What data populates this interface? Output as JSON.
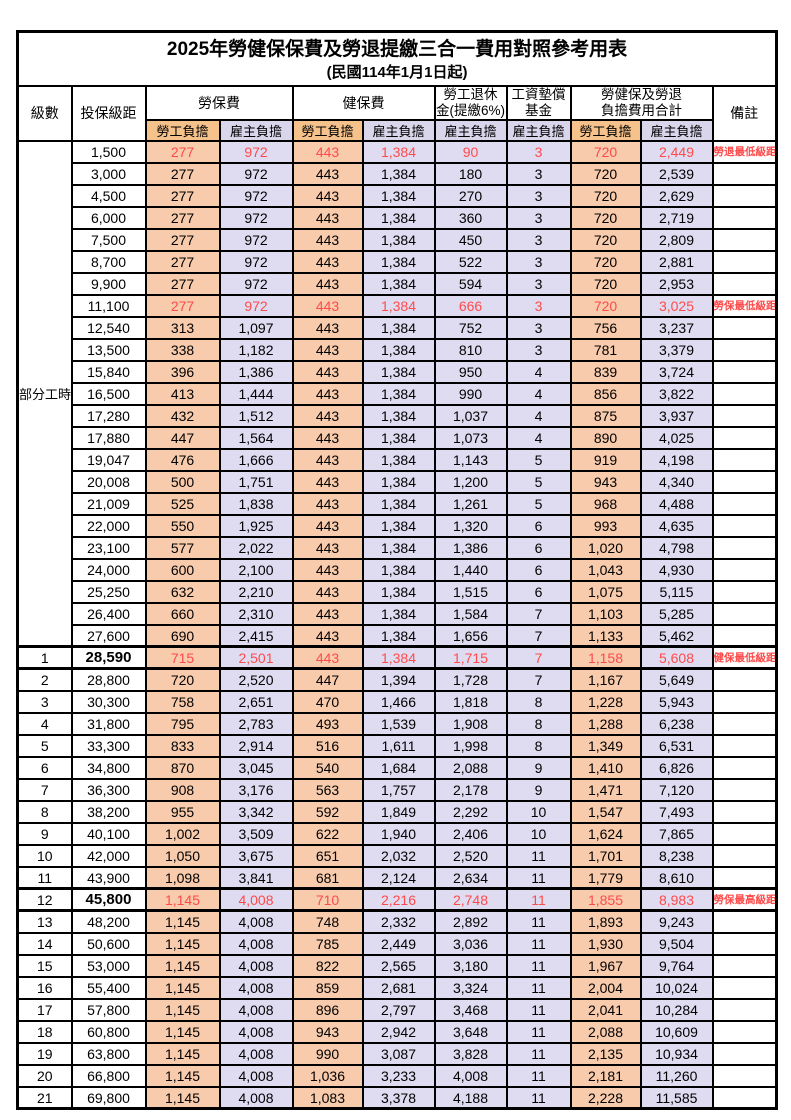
{
  "theme": {
    "orange_header": "#F6C28B",
    "orange_cell": "#F8CBAD",
    "lavender_header": "#D9D6EC",
    "lavender_cell": "#DFDCF2",
    "red_text": "#FF4A4A",
    "border": "#000000"
  },
  "title": {
    "line1": "2025年勞健保保費及勞退提繳三合一費用對照參考用表",
    "line2": "(民國114年1月1日起)"
  },
  "header": {
    "level": "級數",
    "bracket": "投保級距",
    "labor_group": "勞保費",
    "health_group": "健保費",
    "pension_line1": "勞工退休",
    "pension_line2": "金(提繳6%)",
    "wage_fund_line1": "工資墊償",
    "wage_fund_line2": "基金",
    "total_line1": "勞健保及勞退",
    "total_line2": "負擔費用合計",
    "remark": "備註",
    "employee": "勞工負擔",
    "employer": "雇主負擔"
  },
  "table": {
    "group_label": "部分工時",
    "group_rowspan": 23,
    "rows": [
      {
        "level": "",
        "bracket": "1,500",
        "values": [
          "277",
          "972",
          "443",
          "1,384",
          "90",
          "3",
          "720",
          "2,449"
        ],
        "remark": "勞退最低級距",
        "highlight": true,
        "bold_bracket": false,
        "section": false
      },
      {
        "level": "",
        "bracket": "3,000",
        "values": [
          "277",
          "972",
          "443",
          "1,384",
          "180",
          "3",
          "720",
          "2,539"
        ],
        "remark": "",
        "highlight": false,
        "bold_bracket": false,
        "section": false
      },
      {
        "level": "",
        "bracket": "4,500",
        "values": [
          "277",
          "972",
          "443",
          "1,384",
          "270",
          "3",
          "720",
          "2,629"
        ],
        "remark": "",
        "highlight": false,
        "bold_bracket": false,
        "section": false
      },
      {
        "level": "",
        "bracket": "6,000",
        "values": [
          "277",
          "972",
          "443",
          "1,384",
          "360",
          "3",
          "720",
          "2,719"
        ],
        "remark": "",
        "highlight": false,
        "bold_bracket": false,
        "section": false
      },
      {
        "level": "",
        "bracket": "7,500",
        "values": [
          "277",
          "972",
          "443",
          "1,384",
          "450",
          "3",
          "720",
          "2,809"
        ],
        "remark": "",
        "highlight": false,
        "bold_bracket": false,
        "section": false
      },
      {
        "level": "",
        "bracket": "8,700",
        "values": [
          "277",
          "972",
          "443",
          "1,384",
          "522",
          "3",
          "720",
          "2,881"
        ],
        "remark": "",
        "highlight": false,
        "bold_bracket": false,
        "section": false
      },
      {
        "level": "",
        "bracket": "9,900",
        "values": [
          "277",
          "972",
          "443",
          "1,384",
          "594",
          "3",
          "720",
          "2,953"
        ],
        "remark": "",
        "highlight": false,
        "bold_bracket": false,
        "section": false
      },
      {
        "level": "",
        "bracket": "11,100",
        "values": [
          "277",
          "972",
          "443",
          "1,384",
          "666",
          "3",
          "720",
          "3,025"
        ],
        "remark": "勞保最低級距",
        "highlight": true,
        "bold_bracket": false,
        "section": false
      },
      {
        "level": "",
        "bracket": "12,540",
        "values": [
          "313",
          "1,097",
          "443",
          "1,384",
          "752",
          "3",
          "756",
          "3,237"
        ],
        "remark": "",
        "highlight": false,
        "bold_bracket": false,
        "section": false
      },
      {
        "level": "",
        "bracket": "13,500",
        "values": [
          "338",
          "1,182",
          "443",
          "1,384",
          "810",
          "3",
          "781",
          "3,379"
        ],
        "remark": "",
        "highlight": false,
        "bold_bracket": false,
        "section": false
      },
      {
        "level": "",
        "bracket": "15,840",
        "values": [
          "396",
          "1,386",
          "443",
          "1,384",
          "950",
          "4",
          "839",
          "3,724"
        ],
        "remark": "",
        "highlight": false,
        "bold_bracket": false,
        "section": false
      },
      {
        "level": "",
        "bracket": "16,500",
        "values": [
          "413",
          "1,444",
          "443",
          "1,384",
          "990",
          "4",
          "856",
          "3,822"
        ],
        "remark": "",
        "highlight": false,
        "bold_bracket": false,
        "section": false
      },
      {
        "level": "",
        "bracket": "17,280",
        "values": [
          "432",
          "1,512",
          "443",
          "1,384",
          "1,037",
          "4",
          "875",
          "3,937"
        ],
        "remark": "",
        "highlight": false,
        "bold_bracket": false,
        "section": false
      },
      {
        "level": "",
        "bracket": "17,880",
        "values": [
          "447",
          "1,564",
          "443",
          "1,384",
          "1,073",
          "4",
          "890",
          "4,025"
        ],
        "remark": "",
        "highlight": false,
        "bold_bracket": false,
        "section": false
      },
      {
        "level": "",
        "bracket": "19,047",
        "values": [
          "476",
          "1,666",
          "443",
          "1,384",
          "1,143",
          "5",
          "919",
          "4,198"
        ],
        "remark": "",
        "highlight": false,
        "bold_bracket": false,
        "section": false
      },
      {
        "level": "",
        "bracket": "20,008",
        "values": [
          "500",
          "1,751",
          "443",
          "1,384",
          "1,200",
          "5",
          "943",
          "4,340"
        ],
        "remark": "",
        "highlight": false,
        "bold_bracket": false,
        "section": false
      },
      {
        "level": "",
        "bracket": "21,009",
        "values": [
          "525",
          "1,838",
          "443",
          "1,384",
          "1,261",
          "5",
          "968",
          "4,488"
        ],
        "remark": "",
        "highlight": false,
        "bold_bracket": false,
        "section": false
      },
      {
        "level": "",
        "bracket": "22,000",
        "values": [
          "550",
          "1,925",
          "443",
          "1,384",
          "1,320",
          "6",
          "993",
          "4,635"
        ],
        "remark": "",
        "highlight": false,
        "bold_bracket": false,
        "section": false
      },
      {
        "level": "",
        "bracket": "23,100",
        "values": [
          "577",
          "2,022",
          "443",
          "1,384",
          "1,386",
          "6",
          "1,020",
          "4,798"
        ],
        "remark": "",
        "highlight": false,
        "bold_bracket": false,
        "section": false
      },
      {
        "level": "",
        "bracket": "24,000",
        "values": [
          "600",
          "2,100",
          "443",
          "1,384",
          "1,440",
          "6",
          "1,043",
          "4,930"
        ],
        "remark": "",
        "highlight": false,
        "bold_bracket": false,
        "section": false
      },
      {
        "level": "",
        "bracket": "25,250",
        "values": [
          "632",
          "2,210",
          "443",
          "1,384",
          "1,515",
          "6",
          "1,075",
          "5,115"
        ],
        "remark": "",
        "highlight": false,
        "bold_bracket": false,
        "section": false
      },
      {
        "level": "",
        "bracket": "26,400",
        "values": [
          "660",
          "2,310",
          "443",
          "1,384",
          "1,584",
          "7",
          "1,103",
          "5,285"
        ],
        "remark": "",
        "highlight": false,
        "bold_bracket": false,
        "section": false
      },
      {
        "level": "",
        "bracket": "27,600",
        "values": [
          "690",
          "2,415",
          "443",
          "1,384",
          "1,656",
          "7",
          "1,133",
          "5,462"
        ],
        "remark": "",
        "highlight": false,
        "bold_bracket": false,
        "section": false
      },
      {
        "level": "1",
        "bracket": "28,590",
        "values": [
          "715",
          "2,501",
          "443",
          "1,384",
          "1,715",
          "7",
          "1,158",
          "5,608"
        ],
        "remark": "健保最低級距",
        "highlight": true,
        "bold_bracket": true,
        "section": true
      },
      {
        "level": "2",
        "bracket": "28,800",
        "values": [
          "720",
          "2,520",
          "447",
          "1,394",
          "1,728",
          "7",
          "1,167",
          "5,649"
        ],
        "remark": "",
        "highlight": false,
        "bold_bracket": false,
        "section": false
      },
      {
        "level": "3",
        "bracket": "30,300",
        "values": [
          "758",
          "2,651",
          "470",
          "1,466",
          "1,818",
          "8",
          "1,228",
          "5,943"
        ],
        "remark": "",
        "highlight": false,
        "bold_bracket": false,
        "section": false
      },
      {
        "level": "4",
        "bracket": "31,800",
        "values": [
          "795",
          "2,783",
          "493",
          "1,539",
          "1,908",
          "8",
          "1,288",
          "6,238"
        ],
        "remark": "",
        "highlight": false,
        "bold_bracket": false,
        "section": false
      },
      {
        "level": "5",
        "bracket": "33,300",
        "values": [
          "833",
          "2,914",
          "516",
          "1,611",
          "1,998",
          "8",
          "1,349",
          "6,531"
        ],
        "remark": "",
        "highlight": false,
        "bold_bracket": false,
        "section": false
      },
      {
        "level": "6",
        "bracket": "34,800",
        "values": [
          "870",
          "3,045",
          "540",
          "1,684",
          "2,088",
          "9",
          "1,410",
          "6,826"
        ],
        "remark": "",
        "highlight": false,
        "bold_bracket": false,
        "section": false
      },
      {
        "level": "7",
        "bracket": "36,300",
        "values": [
          "908",
          "3,176",
          "563",
          "1,757",
          "2,178",
          "9",
          "1,471",
          "7,120"
        ],
        "remark": "",
        "highlight": false,
        "bold_bracket": false,
        "section": false
      },
      {
        "level": "8",
        "bracket": "38,200",
        "values": [
          "955",
          "3,342",
          "592",
          "1,849",
          "2,292",
          "10",
          "1,547",
          "7,493"
        ],
        "remark": "",
        "highlight": false,
        "bold_bracket": false,
        "section": false
      },
      {
        "level": "9",
        "bracket": "40,100",
        "values": [
          "1,002",
          "3,509",
          "622",
          "1,940",
          "2,406",
          "10",
          "1,624",
          "7,865"
        ],
        "remark": "",
        "highlight": false,
        "bold_bracket": false,
        "section": false
      },
      {
        "level": "10",
        "bracket": "42,000",
        "values": [
          "1,050",
          "3,675",
          "651",
          "2,032",
          "2,520",
          "11",
          "1,701",
          "8,238"
        ],
        "remark": "",
        "highlight": false,
        "bold_bracket": false,
        "section": false
      },
      {
        "level": "11",
        "bracket": "43,900",
        "values": [
          "1,098",
          "3,841",
          "681",
          "2,124",
          "2,634",
          "11",
          "1,779",
          "8,610"
        ],
        "remark": "",
        "highlight": false,
        "bold_bracket": false,
        "section": false
      },
      {
        "level": "12",
        "bracket": "45,800",
        "values": [
          "1,145",
          "4,008",
          "710",
          "2,216",
          "2,748",
          "11",
          "1,855",
          "8,983"
        ],
        "remark": "勞保最高級距",
        "highlight": true,
        "bold_bracket": true,
        "section": true
      },
      {
        "level": "13",
        "bracket": "48,200",
        "values": [
          "1,145",
          "4,008",
          "748",
          "2,332",
          "2,892",
          "11",
          "1,893",
          "9,243"
        ],
        "remark": "",
        "highlight": false,
        "bold_bracket": false,
        "section": false
      },
      {
        "level": "14",
        "bracket": "50,600",
        "values": [
          "1,145",
          "4,008",
          "785",
          "2,449",
          "3,036",
          "11",
          "1,930",
          "9,504"
        ],
        "remark": "",
        "highlight": false,
        "bold_bracket": false,
        "section": false
      },
      {
        "level": "15",
        "bracket": "53,000",
        "values": [
          "1,145",
          "4,008",
          "822",
          "2,565",
          "3,180",
          "11",
          "1,967",
          "9,764"
        ],
        "remark": "",
        "highlight": false,
        "bold_bracket": false,
        "section": false
      },
      {
        "level": "16",
        "bracket": "55,400",
        "values": [
          "1,145",
          "4,008",
          "859",
          "2,681",
          "3,324",
          "11",
          "2,004",
          "10,024"
        ],
        "remark": "",
        "highlight": false,
        "bold_bracket": false,
        "section": false
      },
      {
        "level": "17",
        "bracket": "57,800",
        "values": [
          "1,145",
          "4,008",
          "896",
          "2,797",
          "3,468",
          "11",
          "2,041",
          "10,284"
        ],
        "remark": "",
        "highlight": false,
        "bold_bracket": false,
        "section": false
      },
      {
        "level": "18",
        "bracket": "60,800",
        "values": [
          "1,145",
          "4,008",
          "943",
          "2,942",
          "3,648",
          "11",
          "2,088",
          "10,609"
        ],
        "remark": "",
        "highlight": false,
        "bold_bracket": false,
        "section": false
      },
      {
        "level": "19",
        "bracket": "63,800",
        "values": [
          "1,145",
          "4,008",
          "990",
          "3,087",
          "3,828",
          "11",
          "2,135",
          "10,934"
        ],
        "remark": "",
        "highlight": false,
        "bold_bracket": false,
        "section": false
      },
      {
        "level": "20",
        "bracket": "66,800",
        "values": [
          "1,145",
          "4,008",
          "1,036",
          "3,233",
          "4,008",
          "11",
          "2,181",
          "11,260"
        ],
        "remark": "",
        "highlight": false,
        "bold_bracket": false,
        "section": false
      },
      {
        "level": "21",
        "bracket": "69,800",
        "values": [
          "1,145",
          "4,008",
          "1,083",
          "3,378",
          "4,188",
          "11",
          "2,228",
          "11,585"
        ],
        "remark": "",
        "highlight": false,
        "bold_bracket": false,
        "section": false
      }
    ]
  }
}
